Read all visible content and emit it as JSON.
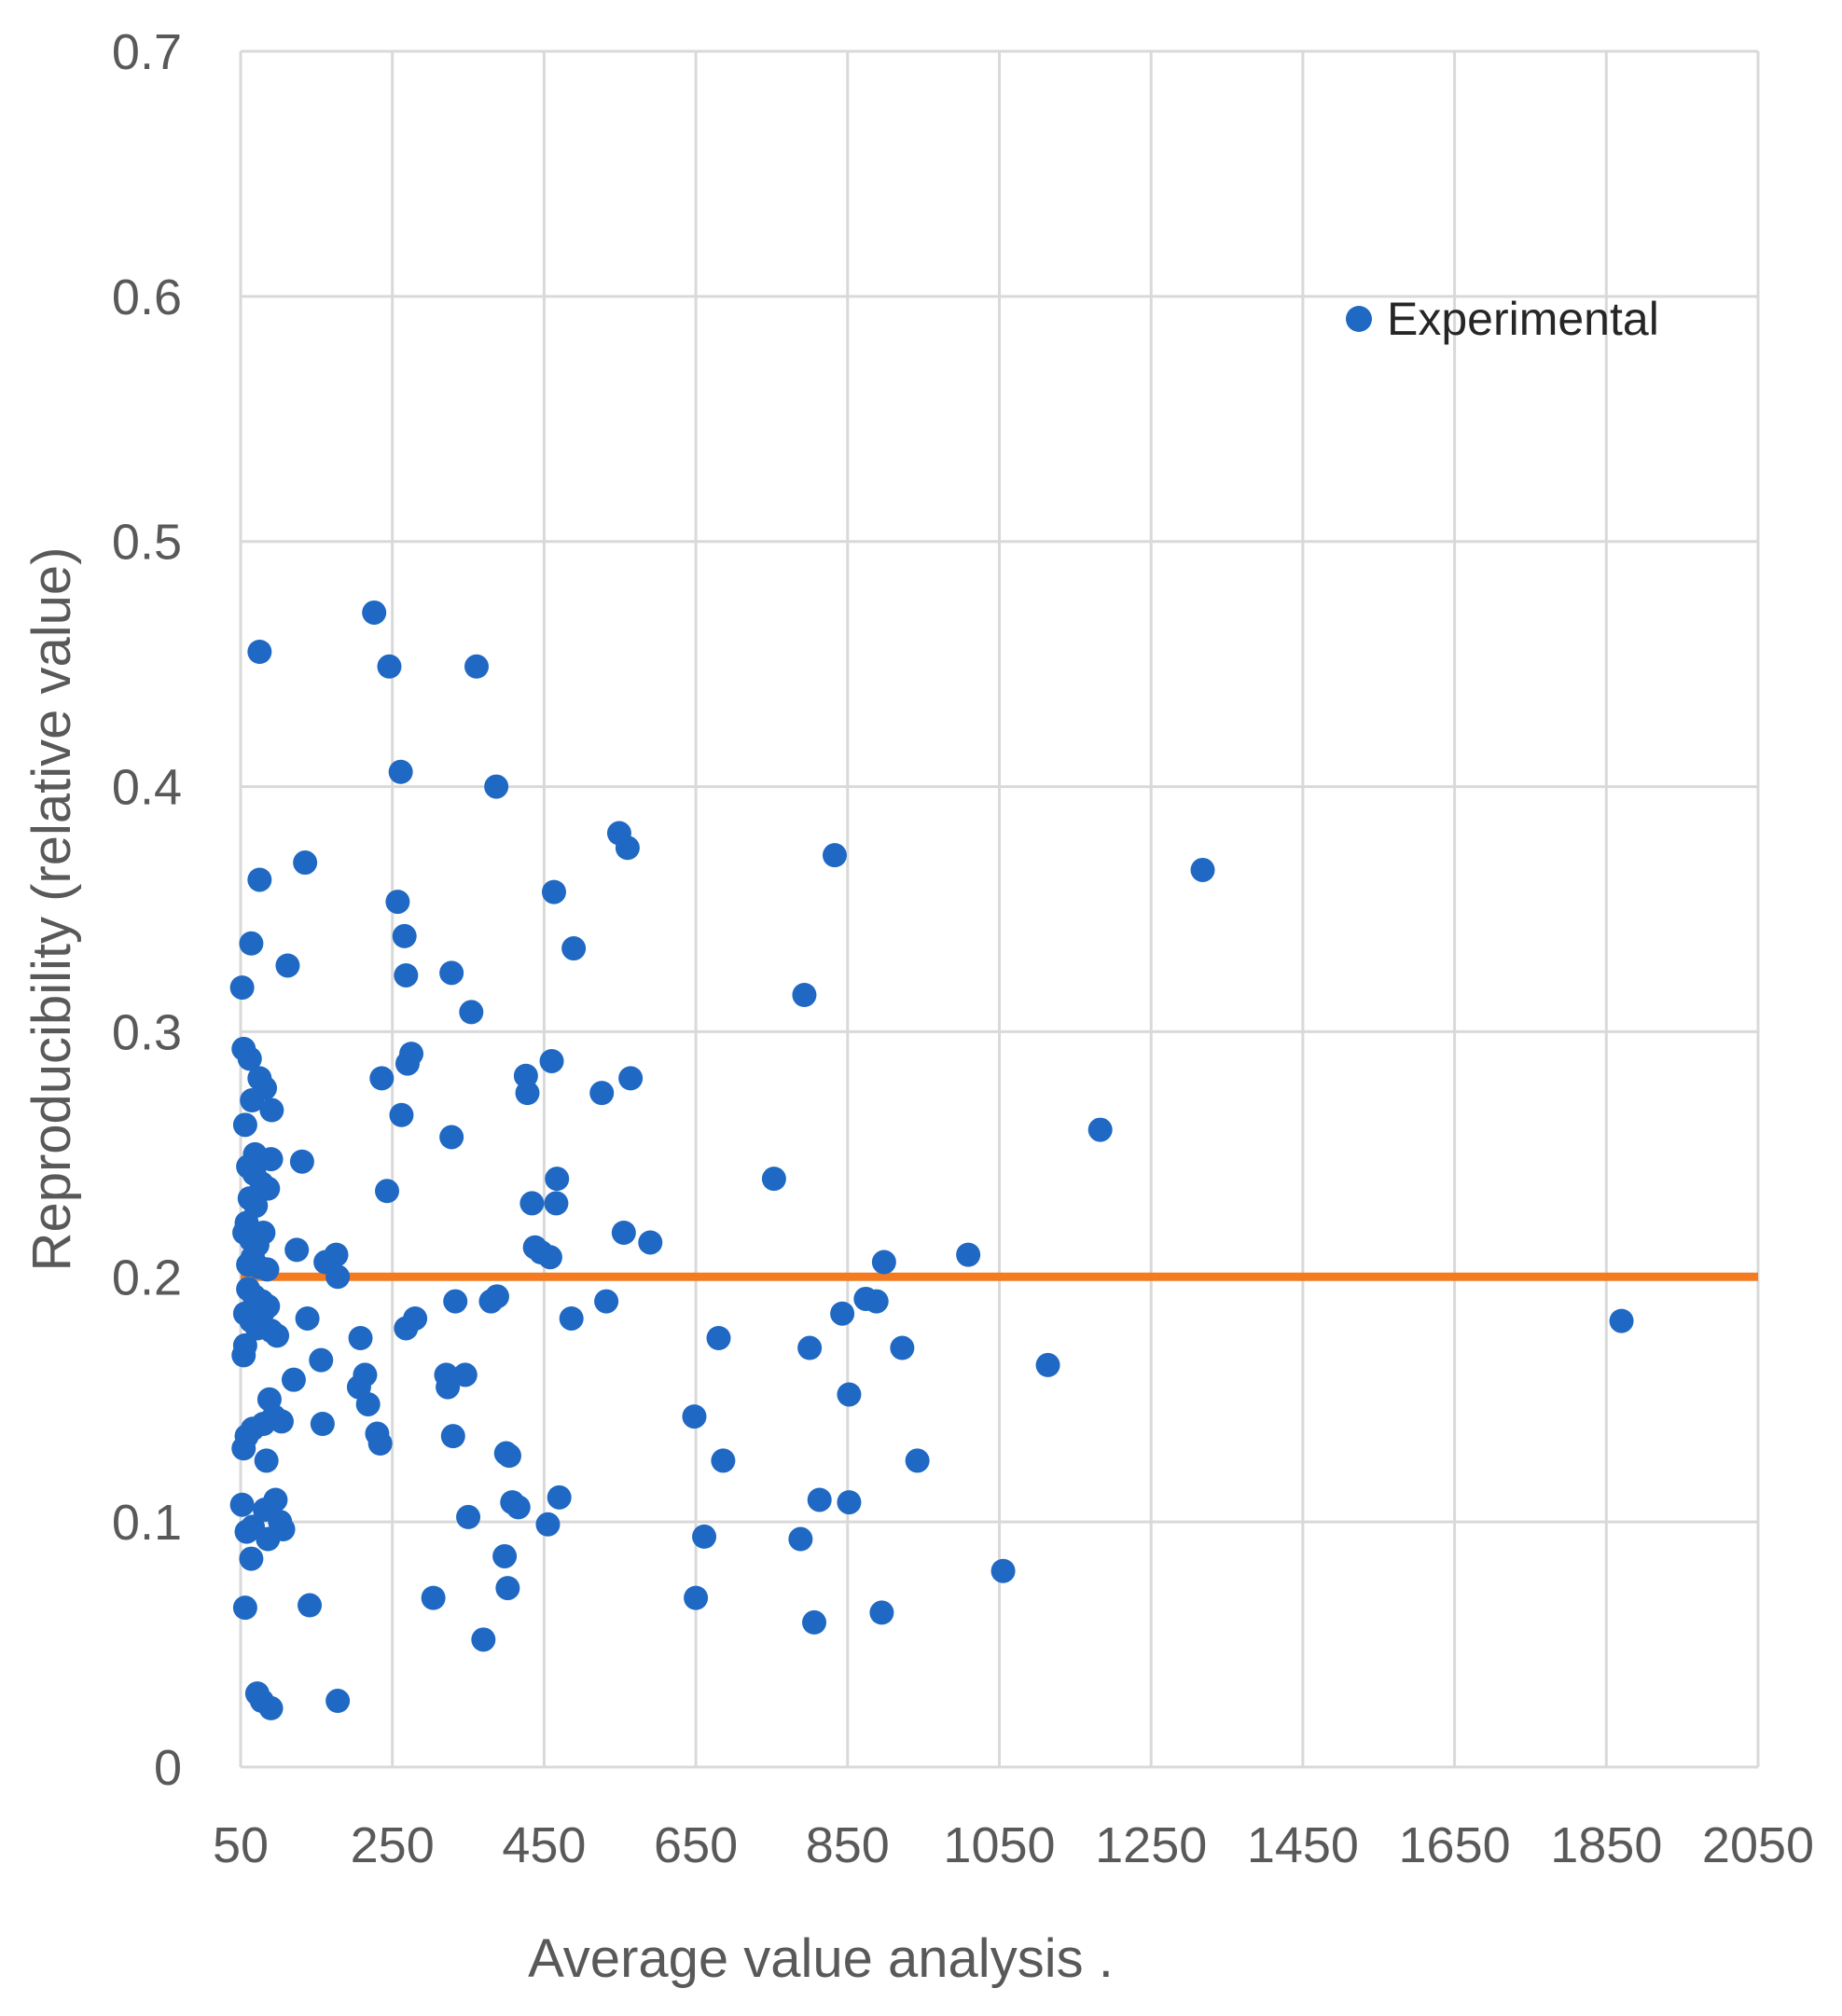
{
  "chart_data": {
    "type": "scatter",
    "title": "",
    "xlabel": "Average value analysis .",
    "ylabel": "Reproducibility (relative value)",
    "xlim": [
      50,
      2050
    ],
    "ylim": [
      0,
      0.7
    ],
    "x_ticks": [
      50,
      250,
      450,
      650,
      850,
      1050,
      1250,
      1450,
      1650,
      1850,
      2050
    ],
    "y_ticks": [
      0,
      0.1,
      0.2,
      0.3,
      0.4,
      0.5,
      0.6,
      0.7
    ],
    "x_tick_labels": [
      "50",
      "250",
      "450",
      "650",
      "850",
      "1050",
      "1250",
      "1450",
      "1650",
      "1850",
      "2050"
    ],
    "y_tick_labels": [
      "0",
      "0.1",
      "0.2",
      "0.3",
      "0.4",
      "0.5",
      "0.6",
      "0.7"
    ],
    "grid": true,
    "legend": {
      "position": "top-right",
      "entries": [
        "Experimental"
      ]
    },
    "series": [
      {
        "name": "Experimental",
        "color": "#1f68c4",
        "points": [
          [
            226,
            0.471
          ],
          [
            75,
            0.455
          ],
          [
            246,
            0.449
          ],
          [
            361,
            0.449
          ],
          [
            261,
            0.406
          ],
          [
            387,
            0.4
          ],
          [
            549,
            0.381
          ],
          [
            560,
            0.375
          ],
          [
            833,
            0.372
          ],
          [
            1318,
            0.366
          ],
          [
            75,
            0.362
          ],
          [
            135,
            0.369
          ],
          [
            463,
            0.357
          ],
          [
            257,
            0.353
          ],
          [
            64,
            0.336
          ],
          [
            112,
            0.327
          ],
          [
            266,
            0.339
          ],
          [
            489,
            0.334
          ],
          [
            52,
            0.318
          ],
          [
            268,
            0.323
          ],
          [
            328,
            0.324
          ],
          [
            354,
            0.308
          ],
          [
            793,
            0.315
          ],
          [
            54,
            0.293
          ],
          [
            62,
            0.289
          ],
          [
            75,
            0.281
          ],
          [
            82,
            0.277
          ],
          [
            65,
            0.272
          ],
          [
            56,
            0.262
          ],
          [
            91,
            0.268
          ],
          [
            69,
            0.25
          ],
          [
            236,
            0.281
          ],
          [
            270,
            0.287
          ],
          [
            275,
            0.291
          ],
          [
            262,
            0.266
          ],
          [
            328,
            0.257
          ],
          [
            426,
            0.282
          ],
          [
            428,
            0.275
          ],
          [
            460,
            0.288
          ],
          [
            526,
            0.275
          ],
          [
            564,
            0.281
          ],
          [
            1183,
            0.26
          ],
          [
            60,
            0.245
          ],
          [
            68,
            0.242
          ],
          [
            78,
            0.238
          ],
          [
            86,
            0.236
          ],
          [
            90,
            0.248
          ],
          [
            62,
            0.232
          ],
          [
            70,
            0.229
          ],
          [
            58,
            0.222
          ],
          [
            55,
            0.218
          ],
          [
            64,
            0.215
          ],
          [
            72,
            0.213
          ],
          [
            80,
            0.218
          ],
          [
            66,
            0.208
          ],
          [
            60,
            0.205
          ],
          [
            74,
            0.204
          ],
          [
            85,
            0.203
          ],
          [
            60,
            0.195
          ],
          [
            68,
            0.192
          ],
          [
            78,
            0.19
          ],
          [
            86,
            0.188
          ],
          [
            56,
            0.185
          ],
          [
            64,
            0.182
          ],
          [
            72,
            0.179
          ],
          [
            80,
            0.186
          ],
          [
            90,
            0.178
          ],
          [
            98,
            0.176
          ],
          [
            131,
            0.247
          ],
          [
            124,
            0.211
          ],
          [
            243,
            0.235
          ],
          [
            434,
            0.23
          ],
          [
            467,
            0.24
          ],
          [
            466,
            0.23
          ],
          [
            438,
            0.212
          ],
          [
            446,
            0.21
          ],
          [
            458,
            0.208
          ],
          [
            753,
            0.24
          ],
          [
            555,
            0.218
          ],
          [
            590,
            0.214
          ],
          [
            898,
            0.206
          ],
          [
            1009,
            0.209
          ],
          [
            162,
            0.206
          ],
          [
            176,
            0.209
          ],
          [
            178,
            0.2
          ],
          [
            54,
            0.168
          ],
          [
            56,
            0.172
          ],
          [
            138,
            0.183
          ],
          [
            156,
            0.166
          ],
          [
            208,
            0.175
          ],
          [
            214,
            0.16
          ],
          [
            268,
            0.179
          ],
          [
            280,
            0.183
          ],
          [
            333,
            0.19
          ],
          [
            380,
            0.19
          ],
          [
            388,
            0.192
          ],
          [
            532,
            0.19
          ],
          [
            486,
            0.183
          ],
          [
            680,
            0.175
          ],
          [
            800,
            0.171
          ],
          [
            843,
            0.185
          ],
          [
            874,
            0.191
          ],
          [
            888,
            0.19
          ],
          [
            922,
            0.171
          ],
          [
            1114,
            0.164
          ],
          [
            1870,
            0.182
          ],
          [
            120,
            0.158
          ],
          [
            158,
            0.14
          ],
          [
            206,
            0.155
          ],
          [
            218,
            0.148
          ],
          [
            230,
            0.136
          ],
          [
            234,
            0.132
          ],
          [
            321,
            0.16
          ],
          [
            323,
            0.155
          ],
          [
            346,
            0.16
          ],
          [
            330,
            0.135
          ],
          [
            88,
            0.15
          ],
          [
            94,
            0.143
          ],
          [
            104,
            0.141
          ],
          [
            80,
            0.14
          ],
          [
            66,
            0.138
          ],
          [
            58,
            0.135
          ],
          [
            54,
            0.13
          ],
          [
            84,
            0.125
          ],
          [
            648,
            0.143
          ],
          [
            686,
            0.125
          ],
          [
            852,
            0.152
          ],
          [
            942,
            0.125
          ],
          [
            400,
            0.128
          ],
          [
            404,
            0.127
          ],
          [
            52,
            0.107
          ],
          [
            58,
            0.096
          ],
          [
            66,
            0.098
          ],
          [
            82,
            0.105
          ],
          [
            96,
            0.109
          ],
          [
            102,
            0.1
          ],
          [
            106,
            0.097
          ],
          [
            86,
            0.093
          ],
          [
            64,
            0.085
          ],
          [
            56,
            0.065
          ],
          [
            350,
            0.102
          ],
          [
            408,
            0.108
          ],
          [
            416,
            0.106
          ],
          [
            470,
            0.11
          ],
          [
            455,
            0.099
          ],
          [
            398,
            0.086
          ],
          [
            402,
            0.073
          ],
          [
            304,
            0.069
          ],
          [
            370,
            0.052
          ],
          [
            141,
            0.066
          ],
          [
            178,
            0.027
          ],
          [
            72,
            0.03
          ],
          [
            78,
            0.027
          ],
          [
            90,
            0.024
          ],
          [
            661,
            0.094
          ],
          [
            650,
            0.069
          ],
          [
            788,
            0.093
          ],
          [
            813,
            0.109
          ],
          [
            852,
            0.108
          ],
          [
            806,
            0.059
          ],
          [
            895,
            0.063
          ],
          [
            1055,
            0.08
          ]
        ]
      }
    ],
    "reference_line": {
      "y": 0.2,
      "color": "#f47b20"
    }
  }
}
